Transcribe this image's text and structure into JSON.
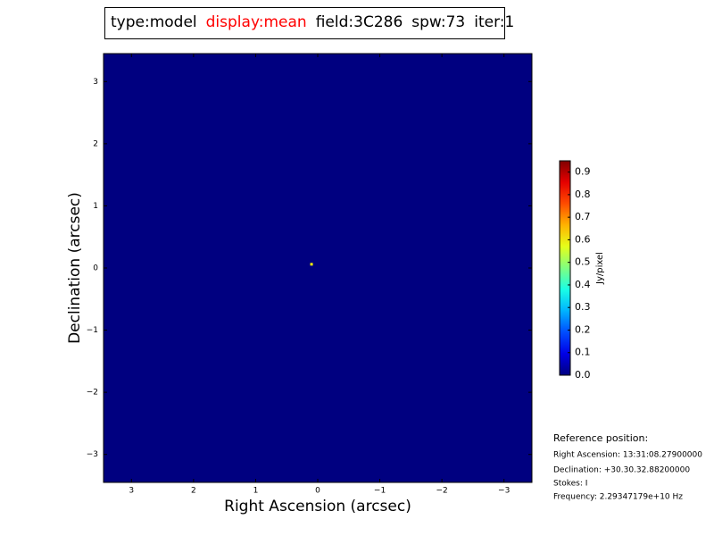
{
  "chart_data": {
    "type": "image",
    "header": [
      {
        "text": "type:model",
        "color": "#000000"
      },
      {
        "text": "display:mean",
        "color": "#ff0000"
      },
      {
        "text": "field:3C286",
        "color": "#000000"
      },
      {
        "text": "spw:73",
        "color": "#000000"
      },
      {
        "text": "iter:1",
        "color": "#000000"
      }
    ],
    "x_label": "Right Ascension (arcsec)",
    "y_label": "Declination (arcsec)",
    "xlim": [
      3.45,
      -3.45
    ],
    "ylim": [
      -3.45,
      3.45
    ],
    "xticks": [
      3,
      2,
      1,
      0,
      {
        "value": -1,
        "label": "−1"
      },
      {
        "value": -2,
        "label": "−2"
      },
      {
        "value": -3,
        "label": "−3"
      }
    ],
    "yticks": [
      {
        "value": -3,
        "label": "−3"
      },
      {
        "value": -2,
        "label": "−2"
      },
      {
        "value": -1,
        "label": "−1"
      },
      0,
      1,
      2,
      3
    ],
    "colormap": "jet",
    "colorbar_label": "Jy/pixel",
    "clim": [
      0,
      0.95
    ],
    "cticks": [
      {
        "value": 0,
        "label": "0.0"
      },
      0.1,
      0.2,
      0.3,
      0.4,
      0.5,
      0.6,
      0.7,
      0.8,
      0.9
    ],
    "points": {
      "x": [
        0.1
      ],
      "y": [
        0.06
      ],
      "values": [
        0.6
      ]
    },
    "annotations": [
      "Reference position:",
      "Right Ascension: 13:31:08.27900000",
      "Declination: +30.30.32.88200000",
      "Stokes: I",
      "Frequency: 2.29347179e+10 Hz"
    ]
  }
}
